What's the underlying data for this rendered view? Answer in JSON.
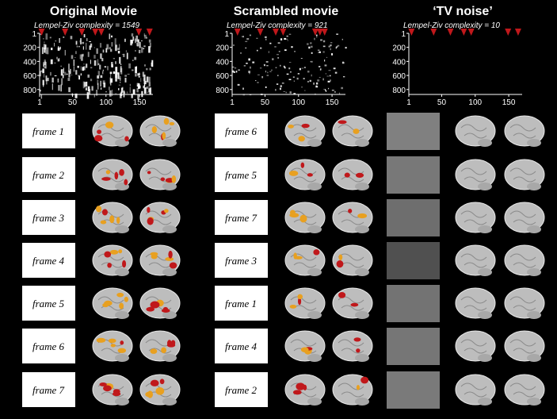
{
  "panels": [
    {
      "title": "Original Movie",
      "complexity": "Lempel-Ziv complexity =  1549",
      "xlim": [
        1,
        170
      ],
      "ylim": [
        1,
        870
      ],
      "xticks": [
        1,
        50,
        100,
        150
      ],
      "yticks": [
        1,
        200,
        400,
        600,
        800
      ],
      "markers": [
        4,
        39,
        64,
        84,
        93,
        149,
        165
      ],
      "frames": [
        "frame 1",
        "frame 2",
        "frame 3",
        "frame 4",
        "frame 5",
        "frame 6",
        "frame 7"
      ]
    },
    {
      "title": "Scrambled movie",
      "complexity": "Lempel-Ziv complexity = 921",
      "xlim": [
        1,
        170
      ],
      "ylim": [
        1,
        870
      ],
      "xticks": [
        1,
        50,
        100,
        150
      ],
      "yticks": [
        1,
        200,
        400,
        600,
        800
      ],
      "markers": [
        9,
        43,
        66,
        77,
        125,
        132,
        139
      ],
      "frames": [
        "frame 6",
        "frame 5",
        "frame 7",
        "frame 3",
        "frame 1",
        "frame 4",
        "frame 2"
      ]
    },
    {
      "title": "‘TV noise’",
      "complexity": "Lempel-Ziv complexity = 10",
      "xlim": [
        1,
        170
      ],
      "ylim": [
        1,
        870
      ],
      "xticks": [
        1,
        50,
        100,
        150
      ],
      "yticks": [
        1,
        200,
        400,
        600,
        800
      ],
      "markers": [
        5,
        38,
        63,
        83,
        94,
        149,
        164
      ],
      "frames": []
    }
  ]
}
